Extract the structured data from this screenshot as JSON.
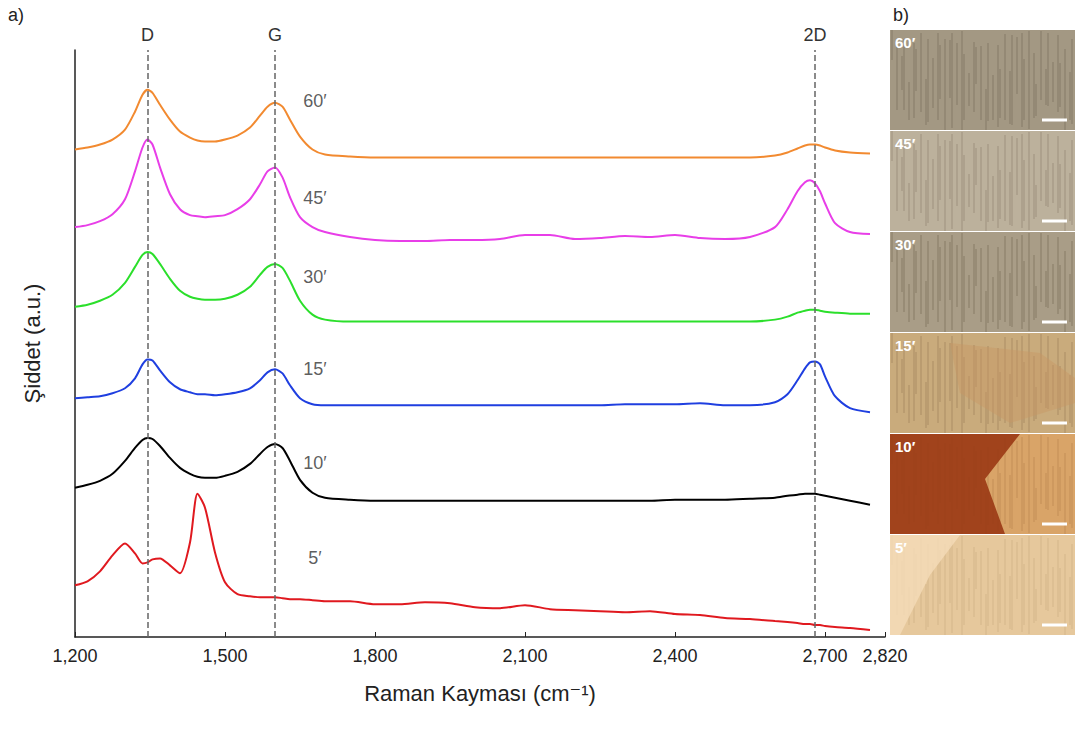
{
  "chart_data": {
    "type": "line",
    "panel_label": "a)",
    "x_label": "Raman Kayması (cm⁻¹)",
    "y_label": "Şiddet (a.u.)",
    "xlim": [
      1200,
      2820
    ],
    "xticks": [
      1200,
      1500,
      1800,
      2100,
      2400,
      2700
    ],
    "ylim": [
      0,
      5.9
    ],
    "tick_labels": "x",
    "grid": false,
    "reference_lines": [
      {
        "x": 1345,
        "label": "D"
      },
      {
        "x": 1600,
        "label": "G"
      },
      {
        "x": 2680,
        "label": "2D"
      }
    ],
    "x": [
      1200,
      1225,
      1250,
      1275,
      1300,
      1320,
      1335,
      1345,
      1355,
      1370,
      1390,
      1410,
      1430,
      1445,
      1460,
      1480,
      1500,
      1525,
      1550,
      1570,
      1585,
      1600,
      1615,
      1630,
      1650,
      1675,
      1700,
      1750,
      1800,
      1850,
      1900,
      1950,
      2000,
      2050,
      2100,
      2150,
      2200,
      2250,
      2300,
      2350,
      2400,
      2450,
      2500,
      2550,
      2600,
      2625,
      2645,
      2660,
      2670,
      2680,
      2690,
      2700,
      2720,
      2750,
      2790
    ],
    "series": [
      {
        "name": "60′",
        "color": "#f28a30",
        "label_x": 1680,
        "label_y": 5.39,
        "values": [
          4.9,
          4.92,
          4.95,
          5.0,
          5.1,
          5.28,
          5.45,
          5.5,
          5.47,
          5.35,
          5.2,
          5.08,
          5.02,
          4.99,
          4.98,
          4.98,
          5.0,
          5.04,
          5.12,
          5.24,
          5.33,
          5.37,
          5.33,
          5.2,
          5.03,
          4.9,
          4.85,
          4.83,
          4.82,
          4.82,
          4.82,
          4.82,
          4.82,
          4.82,
          4.82,
          4.82,
          4.82,
          4.82,
          4.82,
          4.82,
          4.82,
          4.82,
          4.82,
          4.82,
          4.84,
          4.87,
          4.91,
          4.94,
          4.95,
          4.95,
          4.94,
          4.92,
          4.89,
          4.87,
          4.86
        ]
      },
      {
        "name": "45′",
        "color": "#e83ee8",
        "label_x": 1680,
        "label_y": 4.41,
        "values": [
          4.12,
          4.14,
          4.18,
          4.25,
          4.4,
          4.68,
          4.92,
          5.0,
          4.95,
          4.72,
          4.45,
          4.3,
          4.24,
          4.23,
          4.22,
          4.23,
          4.24,
          4.3,
          4.4,
          4.55,
          4.68,
          4.72,
          4.62,
          4.42,
          4.22,
          4.12,
          4.07,
          4.02,
          3.99,
          3.98,
          3.98,
          3.99,
          3.99,
          4.0,
          4.04,
          4.04,
          4.0,
          4.01,
          4.03,
          4.02,
          4.04,
          4.01,
          4.0,
          4.02,
          4.12,
          4.3,
          4.48,
          4.57,
          4.59,
          4.56,
          4.48,
          4.36,
          4.16,
          4.07,
          4.05
        ]
      },
      {
        "name": "30′",
        "color": "#2bdf2b",
        "label_x": 1680,
        "label_y": 3.62,
        "values": [
          3.32,
          3.34,
          3.38,
          3.44,
          3.56,
          3.72,
          3.84,
          3.87,
          3.85,
          3.75,
          3.6,
          3.48,
          3.42,
          3.4,
          3.39,
          3.39,
          3.4,
          3.44,
          3.52,
          3.64,
          3.72,
          3.75,
          3.71,
          3.58,
          3.38,
          3.24,
          3.19,
          3.17,
          3.17,
          3.17,
          3.17,
          3.17,
          3.17,
          3.17,
          3.17,
          3.17,
          3.17,
          3.17,
          3.17,
          3.17,
          3.17,
          3.17,
          3.17,
          3.17,
          3.19,
          3.22,
          3.26,
          3.28,
          3.29,
          3.29,
          3.28,
          3.27,
          3.26,
          3.25,
          3.25
        ]
      },
      {
        "name": "15′",
        "color": "#1f3fe0",
        "label_x": 1680,
        "label_y": 2.69,
        "values": [
          2.4,
          2.41,
          2.42,
          2.45,
          2.5,
          2.6,
          2.74,
          2.79,
          2.78,
          2.68,
          2.56,
          2.49,
          2.46,
          2.44,
          2.44,
          2.43,
          2.44,
          2.46,
          2.5,
          2.58,
          2.66,
          2.69,
          2.65,
          2.53,
          2.4,
          2.34,
          2.33,
          2.33,
          2.33,
          2.33,
          2.33,
          2.33,
          2.33,
          2.33,
          2.33,
          2.33,
          2.33,
          2.33,
          2.34,
          2.34,
          2.34,
          2.35,
          2.33,
          2.33,
          2.36,
          2.44,
          2.58,
          2.7,
          2.76,
          2.77,
          2.74,
          2.62,
          2.42,
          2.3,
          2.26
        ]
      },
      {
        "name": "10′",
        "color": "#000000",
        "label_x": 1680,
        "label_y": 1.75,
        "values": [
          1.5,
          1.53,
          1.57,
          1.64,
          1.77,
          1.9,
          1.98,
          2.0,
          1.99,
          1.92,
          1.8,
          1.7,
          1.64,
          1.61,
          1.6,
          1.6,
          1.62,
          1.66,
          1.74,
          1.84,
          1.91,
          1.94,
          1.9,
          1.77,
          1.58,
          1.45,
          1.4,
          1.38,
          1.37,
          1.37,
          1.37,
          1.37,
          1.37,
          1.37,
          1.37,
          1.37,
          1.37,
          1.37,
          1.37,
          1.37,
          1.38,
          1.38,
          1.38,
          1.39,
          1.4,
          1.42,
          1.43,
          1.44,
          1.44,
          1.44,
          1.43,
          1.42,
          1.4,
          1.37,
          1.33
        ]
      },
      {
        "name": "5′",
        "color": "#e0191f",
        "label_x": 1680,
        "label_y": 0.79,
        "values": [
          0.52,
          0.56,
          0.66,
          0.82,
          0.94,
          0.84,
          0.74,
          0.75,
          0.78,
          0.79,
          0.72,
          0.64,
          0.95,
          1.44,
          1.3,
          0.85,
          0.55,
          0.43,
          0.41,
          0.4,
          0.4,
          0.4,
          0.39,
          0.38,
          0.38,
          0.37,
          0.36,
          0.36,
          0.33,
          0.33,
          0.35,
          0.34,
          0.3,
          0.29,
          0.32,
          0.28,
          0.27,
          0.26,
          0.25,
          0.26,
          0.23,
          0.22,
          0.19,
          0.18,
          0.16,
          0.15,
          0.14,
          0.13,
          0.13,
          0.12,
          0.12,
          0.11,
          0.1,
          0.09,
          0.07
        ]
      }
    ]
  },
  "panel_b": {
    "label": "b)",
    "images": [
      "60′",
      "45′",
      "30′",
      "15′",
      "10′",
      "5′"
    ]
  }
}
